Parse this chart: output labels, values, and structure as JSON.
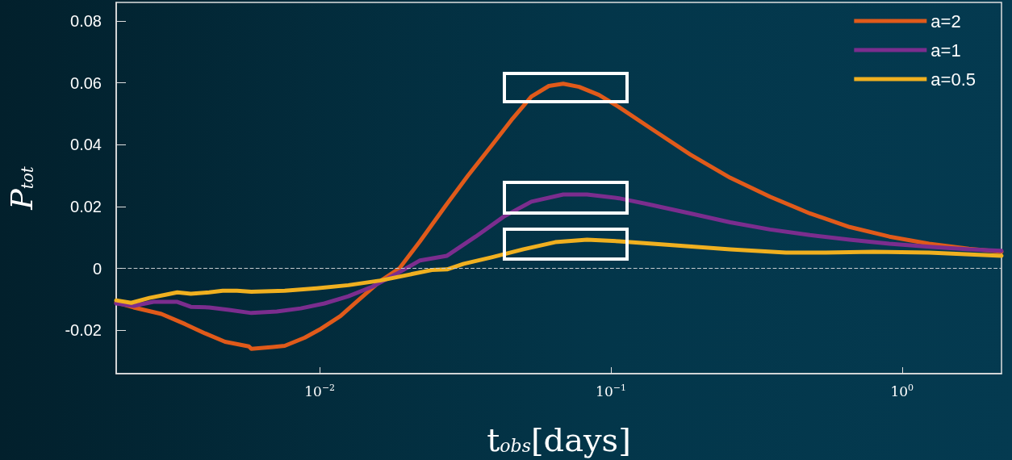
{
  "chart_data": {
    "type": "line",
    "xlabel": "t$_{obs}$[days]",
    "ylabel": "P$_{tot}$",
    "log": "x",
    "xlim": [
      0.002,
      2.195
    ],
    "xticks": [
      {
        "value": 0.01,
        "label": "10$^{−2}$"
      },
      {
        "value": 0.1,
        "label": "10$^{−1}$"
      },
      {
        "value": 1,
        "label": "10$^{0}$"
      }
    ],
    "ylim": [
      -0.034,
      0.086
    ],
    "yticks": [
      -0.02,
      0,
      0.02,
      0.04,
      0.06,
      0.08
    ],
    "grid": false,
    "legend": "top right",
    "marker": "none",
    "line_style": "solid",
    "ref_lines": [
      {
        "axis": "y",
        "value": 0,
        "line_style": "dashed",
        "color": "#c8ccd0"
      }
    ],
    "series": [
      {
        "name": "a=2",
        "color": "#e05a1a",
        "x": [
          0.002,
          0.002295,
          0.002859,
          0.003452,
          0.004043,
          0.00473,
          0.005711,
          0.005821,
          0.0069,
          0.007583,
          0.008873,
          0.00997,
          0.01178,
          0.01336,
          0.01613,
          0.01876,
          0.0221,
          0.02668,
          0.03223,
          0.03892,
          0.04555,
          0.05332,
          0.06123,
          0.06857,
          0.07776,
          0.09099,
          0.1065,
          0.137,
          0.1876,
          0.257,
          0.3519,
          0.4822,
          0.6602,
          0.9044,
          1.2385,
          1.696,
          2.195
        ],
        "values": [
          -0.011,
          -0.0126,
          -0.0147,
          -0.018,
          -0.021,
          -0.0237,
          -0.0252,
          -0.026,
          -0.0254,
          -0.025,
          -0.0224,
          -0.0198,
          -0.0154,
          -0.0108,
          -0.0041,
          0,
          0.0088,
          0.0195,
          0.0299,
          0.0397,
          0.048,
          0.0556,
          0.059,
          0.0597,
          0.0587,
          0.0561,
          0.0522,
          0.0453,
          0.0368,
          0.0293,
          0.0232,
          0.0178,
          0.0134,
          0.0103,
          0.008,
          0.0064,
          0.0054
        ]
      },
      {
        "name": "a=1",
        "color": "#7b2d8e",
        "x": [
          0.002,
          0.002295,
          0.002685,
          0.003243,
          0.003608,
          0.004172,
          0.004882,
          0.005821,
          0.00712,
          0.008604,
          0.01038,
          0.01254,
          0.01515,
          0.01829,
          0.0221,
          0.02736,
          0.03431,
          0.04277,
          0.05332,
          0.06857,
          0.08279,
          0.1065,
          0.137,
          0.1876,
          0.257,
          0.3519,
          0.4822,
          0.6602,
          0.9044,
          1.2385,
          1.696,
          2.195
        ],
        "values": [
          -0.0113,
          -0.0121,
          -0.0108,
          -0.0108,
          -0.0124,
          -0.0126,
          -0.0134,
          -0.0144,
          -0.0139,
          -0.0129,
          -0.0113,
          -0.009,
          -0.0059,
          -0.0018,
          0.0026,
          0.0041,
          0.0103,
          0.0167,
          0.0216,
          0.0239,
          0.0239,
          0.0227,
          0.0206,
          0.0178,
          0.0149,
          0.0126,
          0.0108,
          0.0093,
          0.008,
          0.007,
          0.0062,
          0.0057
        ]
      },
      {
        "name": "a=0.5",
        "color": "#f0b020",
        "x": [
          0.002,
          0.002252,
          0.002602,
          0.002951,
          0.003243,
          0.003608,
          0.004172,
          0.004642,
          0.005197,
          0.005821,
          0.007583,
          0.009752,
          0.01254,
          0.01613,
          0.02075,
          0.02428,
          0.02736,
          0.03123,
          0.03892,
          0.05006,
          0.06437,
          0.08279,
          0.1065,
          0.1554,
          0.257,
          0.3992,
          0.5467,
          0.7973,
          1.2385,
          2.195
        ],
        "values": [
          -0.0103,
          -0.0111,
          -0.0095,
          -0.0085,
          -0.0077,
          -0.0082,
          -0.0077,
          -0.0072,
          -0.0072,
          -0.0075,
          -0.0072,
          -0.0064,
          -0.0054,
          -0.0039,
          -0.0018,
          -0.0005,
          -0.0003,
          0.0015,
          0.0036,
          0.0062,
          0.0085,
          0.0093,
          0.0088,
          0.0077,
          0.0062,
          0.0051,
          0.0051,
          0.0054,
          0.0051,
          0.0041
        ]
      }
    ]
  }
}
